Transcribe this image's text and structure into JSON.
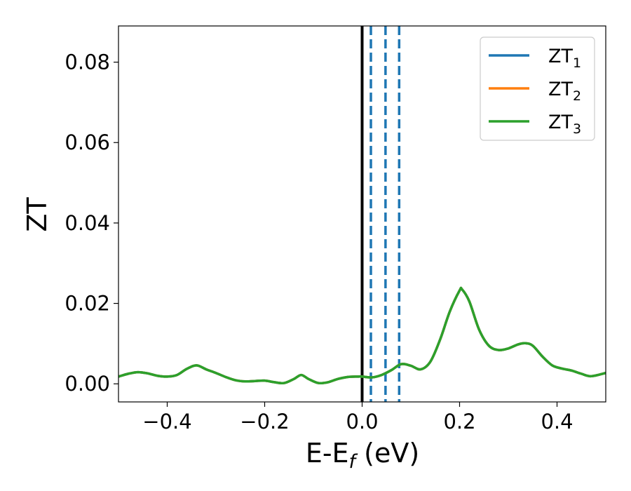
{
  "chart_data": {
    "type": "line",
    "xlabel": {
      "main": "E-E",
      "sub": "f",
      "unit": " (eV)"
    },
    "ylabel": "ZT",
    "xlim": [
      -0.5,
      0.5
    ],
    "ylim": [
      -0.0045,
      0.089
    ],
    "x_ticks": [
      -0.4,
      -0.2,
      0.0,
      0.2,
      0.4
    ],
    "x_tick_labels": [
      "−0.4",
      "−0.2",
      "0.0",
      "0.2",
      "0.4"
    ],
    "y_ticks": [
      0.0,
      0.02,
      0.04,
      0.06,
      0.08
    ],
    "y_tick_labels": [
      "0.00",
      "0.02",
      "0.04",
      "0.06",
      "0.08"
    ],
    "grid": false,
    "legend_position": "top-right",
    "colors": {
      "ZT1": "#1f77b4",
      "ZT2": "#ff7f0e",
      "ZT3": "#2ca02c",
      "fermi": "#000000"
    },
    "legend": [
      {
        "main": "ZT",
        "sub": "1",
        "color": "#1f77b4"
      },
      {
        "main": "ZT",
        "sub": "2",
        "color": "#ff7f0e"
      },
      {
        "main": "ZT",
        "sub": "3",
        "color": "#2ca02c"
      }
    ],
    "vertical_lines": [
      {
        "x": 0.0,
        "style": "solid",
        "color": "#000000"
      },
      {
        "x": 0.018,
        "style": "dashed",
        "color": "#1f77b4"
      },
      {
        "x": 0.048,
        "style": "dashed",
        "color": "#1f77b4"
      },
      {
        "x": 0.076,
        "style": "dashed",
        "color": "#1f77b4"
      }
    ],
    "x": [
      -0.5,
      -0.48,
      -0.46,
      -0.44,
      -0.42,
      -0.4,
      -0.38,
      -0.36,
      -0.34,
      -0.32,
      -0.3,
      -0.28,
      -0.26,
      -0.24,
      -0.22,
      -0.2,
      -0.18,
      -0.16,
      -0.14,
      -0.125,
      -0.11,
      -0.09,
      -0.07,
      -0.05,
      -0.03,
      -0.01,
      0.0,
      0.02,
      0.04,
      0.06,
      0.08,
      0.1,
      0.12,
      0.14,
      0.16,
      0.18,
      0.2,
      0.205,
      0.22,
      0.24,
      0.26,
      0.28,
      0.3,
      0.32,
      0.335,
      0.35,
      0.37,
      0.39,
      0.41,
      0.43,
      0.45,
      0.47,
      0.5
    ],
    "series": [
      {
        "name": "ZT1",
        "values": [
          0.0018,
          0.0025,
          0.0029,
          0.0026,
          0.002,
          0.0018,
          0.0022,
          0.0037,
          0.0046,
          0.0036,
          0.0027,
          0.0017,
          0.0009,
          0.0006,
          0.0007,
          0.0008,
          0.0004,
          0.0002,
          0.0012,
          0.0022,
          0.0012,
          0.0002,
          0.0004,
          0.0012,
          0.0017,
          0.0018,
          0.0018,
          0.0016,
          0.0022,
          0.0034,
          0.0049,
          0.0045,
          0.0036,
          0.0055,
          0.011,
          0.018,
          0.0232,
          0.0235,
          0.0205,
          0.0135,
          0.0095,
          0.0084,
          0.0088,
          0.0098,
          0.0101,
          0.0095,
          0.0068,
          0.0046,
          0.0038,
          0.0033,
          0.0025,
          0.0019,
          0.0027
        ]
      },
      {
        "name": "ZT2",
        "values": [
          0.0018,
          0.0025,
          0.0029,
          0.0026,
          0.002,
          0.0018,
          0.0022,
          0.0037,
          0.0046,
          0.0036,
          0.0027,
          0.0017,
          0.0009,
          0.0006,
          0.0007,
          0.0008,
          0.0004,
          0.0002,
          0.0012,
          0.0022,
          0.0012,
          0.0002,
          0.0004,
          0.0012,
          0.0017,
          0.0018,
          0.0018,
          0.0016,
          0.0022,
          0.0034,
          0.0049,
          0.0045,
          0.0036,
          0.0055,
          0.011,
          0.018,
          0.0232,
          0.0235,
          0.0205,
          0.0135,
          0.0095,
          0.0084,
          0.0088,
          0.0098,
          0.0101,
          0.0095,
          0.0068,
          0.0046,
          0.0038,
          0.0033,
          0.0025,
          0.0019,
          0.0027
        ]
      },
      {
        "name": "ZT3",
        "values": [
          0.0018,
          0.0025,
          0.0029,
          0.0026,
          0.002,
          0.0018,
          0.0022,
          0.0037,
          0.0046,
          0.0036,
          0.0027,
          0.0017,
          0.0009,
          0.0006,
          0.0007,
          0.0008,
          0.0004,
          0.0002,
          0.0012,
          0.0022,
          0.0012,
          0.0002,
          0.0004,
          0.0012,
          0.0017,
          0.0018,
          0.0018,
          0.0016,
          0.0022,
          0.0034,
          0.0049,
          0.0045,
          0.0036,
          0.0055,
          0.011,
          0.018,
          0.0232,
          0.0235,
          0.0205,
          0.0135,
          0.0095,
          0.0084,
          0.0088,
          0.0098,
          0.0101,
          0.0095,
          0.0068,
          0.0046,
          0.0038,
          0.0033,
          0.0025,
          0.0019,
          0.0027
        ]
      }
    ]
  }
}
